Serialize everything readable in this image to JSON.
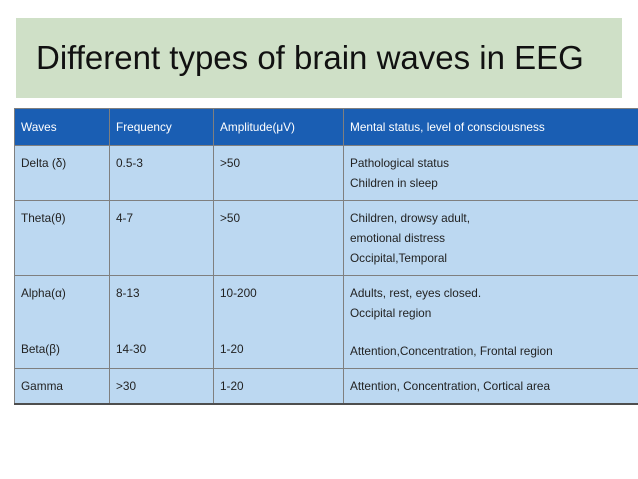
{
  "title": "Different types of brain waves in EEG",
  "table": {
    "headers": [
      "Waves",
      "Frequency",
      "Amplitude(μV)",
      "Mental status, level of consciousness"
    ],
    "rows": [
      {
        "wave": "Delta (δ)",
        "frequency": "0.5-3",
        "amplitude": ">50",
        "status": [
          "Pathological status",
          "Children in sleep"
        ]
      },
      {
        "wave": "Theta(θ)",
        "frequency": "4-7",
        "amplitude": ">50",
        "status": [
          "Children, drowsy adult,",
          "emotional distress",
          "Occipital,Temporal"
        ]
      },
      {
        "wave": "Alpha(α)",
        "frequency": "8-13",
        "amplitude": "10-200",
        "status": [
          "Adults, rest, eyes closed.",
          "Occipital region"
        ]
      },
      {
        "wave": "Beta(β)",
        "frequency": "14-30",
        "amplitude": "1-20",
        "status": [
          "Attention,Concentration, Frontal region"
        ]
      },
      {
        "wave": "Gamma",
        "frequency": ">30",
        "amplitude": "1-20",
        "status": [
          "Attention, Concentration, Cortical area"
        ]
      }
    ]
  },
  "colors": {
    "title_background": "#cfe0c7",
    "header_background": "#1a5eb3",
    "cell_background": "#bcd8f1"
  }
}
